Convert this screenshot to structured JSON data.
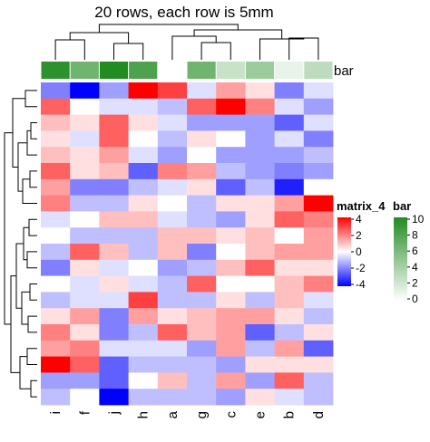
{
  "chart_data": {
    "type": "heatmap",
    "title": "20 rows, each row is 5mm",
    "columns": [
      "i",
      "f",
      "j",
      "h",
      "a",
      "g",
      "c",
      "e",
      "b",
      "d"
    ],
    "row_count": 20,
    "bar_annotation": {
      "name": "bar",
      "values": [
        9.5,
        6.5,
        10,
        8,
        null,
        6.5,
        2.5,
        4.5,
        1,
        3
      ],
      "legend_ticks": [
        "10",
        "8",
        "6",
        "4",
        "2",
        "0"
      ],
      "color_high": "#228B22",
      "color_low": "#FFFFFF"
    },
    "matrix": {
      "name": "matrix_4",
      "legend_ticks": [
        "4",
        "2",
        "0",
        "-2",
        "-4"
      ],
      "color_high": "#FF0000",
      "color_mid": "#FFFFFF",
      "color_low": "#0000FF",
      "values": [
        [
          -2.0,
          -4.0,
          -1.5,
          4.0,
          3.0,
          -0.5,
          1.5,
          0.5,
          -2.0,
          -0.5
        ],
        [
          2.5,
          0.0,
          -0.5,
          -0.5,
          -1.0,
          2.5,
          4.0,
          2.0,
          -0.5,
          -1.5
        ],
        [
          1.0,
          0.5,
          2.5,
          0.5,
          -0.5,
          -1.5,
          -1.5,
          -1.5,
          -2.5,
          -0.5
        ],
        [
          0.5,
          -0.5,
          2.5,
          0.0,
          -1.0,
          0.5,
          0.0,
          -1.5,
          -0.5,
          -2.0
        ],
        [
          1.0,
          0.5,
          1.5,
          -0.5,
          -1.5,
          0.0,
          -1.5,
          -1.5,
          -1.5,
          -1.0
        ],
        [
          2.5,
          0.5,
          1.0,
          -2.5,
          2.0,
          1.5,
          -1.0,
          -1.5,
          -2.0,
          -1.5
        ],
        [
          1.5,
          -2.0,
          -2.0,
          -1.0,
          -0.5,
          0.5,
          -2.5,
          -1.0,
          -3.5,
          0.0
        ],
        [
          2.0,
          -1.0,
          -1.0,
          0.5,
          0.0,
          -1.0,
          0.5,
          0.5,
          1.5,
          4.0
        ],
        [
          -0.5,
          0.0,
          1.0,
          1.0,
          -0.5,
          -1.0,
          -1.5,
          0.5,
          2.5,
          2.0
        ],
        [
          0.0,
          -1.0,
          -1.0,
          -1.0,
          1.0,
          1.0,
          0.5,
          1.0,
          0.0,
          1.5
        ],
        [
          -1.0,
          2.5,
          1.0,
          -1.0,
          1.0,
          -2.0,
          0.0,
          1.0,
          1.5,
          1.5
        ],
        [
          -2.0,
          0.5,
          -0.5,
          0.0,
          -1.5,
          -1.0,
          1.0,
          2.5,
          0.5,
          0.5
        ],
        [
          0.0,
          -0.5,
          0.5,
          -0.5,
          -1.0,
          2.5,
          0.0,
          0.0,
          1.0,
          2.0
        ],
        [
          -1.0,
          -0.5,
          -0.5,
          3.0,
          -1.0,
          -1.0,
          0.5,
          -1.0,
          1.0,
          -0.5
        ],
        [
          0.5,
          1.5,
          -2.0,
          1.5,
          0.5,
          1.0,
          1.5,
          1.5,
          0.5,
          -1.0
        ],
        [
          2.0,
          0.5,
          -2.0,
          -1.0,
          2.5,
          1.0,
          1.5,
          -2.5,
          -1.0,
          0.5
        ],
        [
          1.5,
          2.0,
          -0.5,
          -0.5,
          -0.5,
          -1.5,
          1.5,
          -1.0,
          1.5,
          -2.5
        ],
        [
          4.0,
          2.5,
          -2.5,
          -1.0,
          -1.0,
          -1.0,
          -1.5,
          0.5,
          0.5,
          0.5
        ],
        [
          -1.5,
          -1.5,
          -2.5,
          0.0,
          1.0,
          -1.0,
          1.5,
          -1.5,
          2.5,
          -1.0
        ],
        [
          -1.0,
          0.0,
          -4.0,
          -1.0,
          -1.0,
          -1.0,
          -1.5,
          0.5,
          -0.5,
          -1.0
        ]
      ]
    }
  }
}
